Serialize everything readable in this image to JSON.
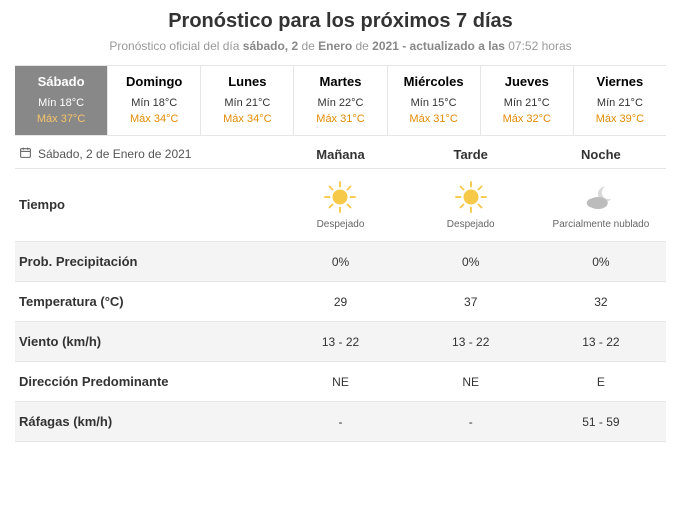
{
  "header": {
    "title": "Pronóstico para los próximos 7 días",
    "subtitle_prefix": "Pronóstico oficial del día ",
    "subtitle_day": "sábado, 2",
    "subtitle_mid1": " de ",
    "subtitle_month": "Enero",
    "subtitle_mid2": " de ",
    "subtitle_year": "2021",
    "subtitle_updated": " - actualizado a las ",
    "subtitle_time": "07:52",
    "subtitle_suffix": " horas"
  },
  "days": [
    {
      "name": "Sábado",
      "min": "Mín 18°C",
      "max": "Máx 37°C",
      "active": true
    },
    {
      "name": "Domingo",
      "min": "Mín 18°C",
      "max": "Máx 34°C",
      "active": false
    },
    {
      "name": "Lunes",
      "min": "Mín 21°C",
      "max": "Máx 34°C",
      "active": false
    },
    {
      "name": "Martes",
      "min": "Mín 22°C",
      "max": "Máx 31°C",
      "active": false
    },
    {
      "name": "Miércoles",
      "min": "Mín 15°C",
      "max": "Máx 31°C",
      "active": false
    },
    {
      "name": "Jueves",
      "min": "Mín 21°C",
      "max": "Máx 32°C",
      "active": false
    },
    {
      "name": "Viernes",
      "min": "Mín 21°C",
      "max": "Máx 39°C",
      "active": false
    }
  ],
  "detail": {
    "date_label": "Sábado, 2 de Enero de 2021",
    "periods": [
      "Mañana",
      "Tarde",
      "Noche"
    ],
    "tiempo_label": "Tiempo",
    "tiempo_icons": [
      "sun",
      "sun",
      "cloud-moon"
    ],
    "tiempo_desc": [
      "Despejado",
      "Despejado",
      "Parcialmente nublado"
    ],
    "rows": [
      {
        "label": "Prob. Precipitación",
        "values": [
          "0%",
          "0%",
          "0%"
        ],
        "shaded": true
      },
      {
        "label": "Temperatura (°C)",
        "values": [
          "29",
          "37",
          "32"
        ],
        "shaded": false
      },
      {
        "label": "Viento (km/h)",
        "values": [
          "13 - 22",
          "13 - 22",
          "13 - 22"
        ],
        "shaded": true
      },
      {
        "label": "Dirección Predominante",
        "values": [
          "NE",
          "NE",
          "E"
        ],
        "shaded": false
      },
      {
        "label": "Ráfagas (km/h)",
        "values": [
          "-",
          "-",
          "51 - 59"
        ],
        "shaded": true
      }
    ]
  },
  "colors": {
    "accent_orange": "#e28c05",
    "active_bg": "#888888",
    "border": "#e6e6e6",
    "shaded_bg": "#f4f4f4",
    "sun_fill": "#f7c948",
    "moon_fill": "#d8d8d8",
    "cloud_fill": "#bcbcbc"
  }
}
